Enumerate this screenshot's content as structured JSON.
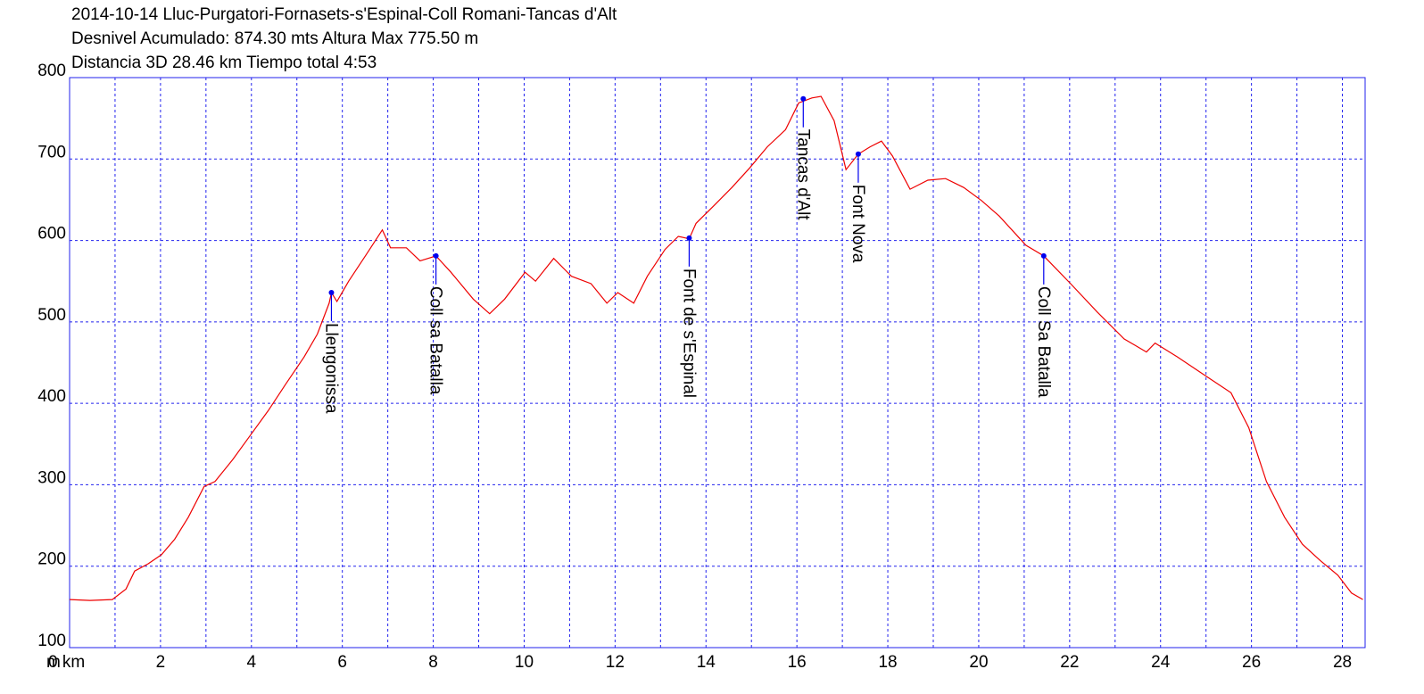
{
  "chart_data": {
    "type": "line",
    "title": "2014-10-14 Lluc-Purgatori-Fornasets-s'Espinal-Coll Romani-Tancas d'Alt",
    "subtitles": [
      "Desnivel Acumulado: 874.30 mts  Altura Max 775.50 m",
      "Distancia 3D 28.46 km  Tiempo total 4:53"
    ],
    "y_unit": "m",
    "xlim": [
      0,
      28.5
    ],
    "ylim": [
      100,
      800
    ],
    "xticks": [
      {
        "value": 0,
        "label": "0 km"
      },
      2,
      4,
      6,
      8,
      10,
      12,
      14,
      16,
      18,
      20,
      22,
      24,
      26,
      28
    ],
    "x_minor_ticks": [
      1,
      3,
      5,
      7,
      9,
      11,
      13,
      15,
      17,
      19,
      21,
      23,
      25,
      27
    ],
    "yticks": [
      100,
      200,
      300,
      400,
      500,
      600,
      700,
      800
    ],
    "grid": true,
    "frame_color": "#2222ee",
    "grid_color": "#2222ee",
    "x": [
      0,
      0.45,
      0.94,
      1.24,
      1.43,
      1.73,
      2.02,
      2.31,
      2.61,
      2.96,
      3.2,
      3.59,
      3.98,
      4.37,
      4.76,
      5.16,
      5.45,
      5.71,
      5.76,
      5.88,
      6.14,
      6.53,
      6.82,
      6.88,
      7.06,
      7.41,
      7.71,
      8.06,
      8.39,
      8.88,
      9.24,
      9.57,
      10.02,
      10.25,
      10.65,
      11.04,
      11.47,
      11.82,
      12.06,
      12.41,
      12.71,
      13.1,
      13.39,
      13.63,
      13.78,
      14.18,
      14.57,
      14.96,
      15.35,
      15.75,
      16.04,
      16.33,
      16.53,
      16.82,
      17.08,
      17.35,
      17.61,
      17.86,
      18.1,
      18.49,
      18.88,
      19.27,
      19.67,
      20.06,
      20.45,
      21.04,
      21.43,
      22.02,
      22.61,
      23.2,
      23.69,
      23.88,
      24.37,
      24.96,
      25.55,
      25.94,
      26.33,
      26.73,
      27.12,
      27.51,
      27.9,
      28.2,
      28.45
    ],
    "series": [
      {
        "color": "#ee0000",
        "values": [
          159,
          158,
          159,
          172,
          194,
          203,
          214,
          233,
          260,
          298,
          304,
          331,
          361,
          391,
          424,
          457,
          485,
          523,
          536,
          525,
          550,
          583,
          608,
          613,
          591,
          591,
          575,
          581,
          561,
          528,
          510,
          528,
          561,
          550,
          578,
          556,
          547,
          523,
          536,
          523,
          556,
          589,
          605,
          602,
          621,
          643,
          665,
          689,
          715,
          736,
          769,
          775,
          777,
          747,
          687,
          706,
          715,
          722,
          704,
          663,
          674,
          676,
          665,
          649,
          630,
          594,
          581,
          547,
          512,
          479,
          463,
          474,
          457,
          435,
          413,
          370,
          304,
          260,
          227,
          207,
          189,
          167,
          159
        ]
      }
    ],
    "annotations": [
      {
        "x": 5.76,
        "y": 536,
        "label": "Llengonissa"
      },
      {
        "x": 8.06,
        "y": 581,
        "label": "Coll sa Batalla"
      },
      {
        "x": 13.63,
        "y": 603,
        "label": "Font de s'Espinal"
      },
      {
        "x": 16.14,
        "y": 774,
        "label": "Tancas d'Alt"
      },
      {
        "x": 17.35,
        "y": 706,
        "label": "Font Nova"
      },
      {
        "x": 21.43,
        "y": 581,
        "label": "Coll Sa Batalla"
      }
    ],
    "annotation_color": "#0000ee"
  }
}
